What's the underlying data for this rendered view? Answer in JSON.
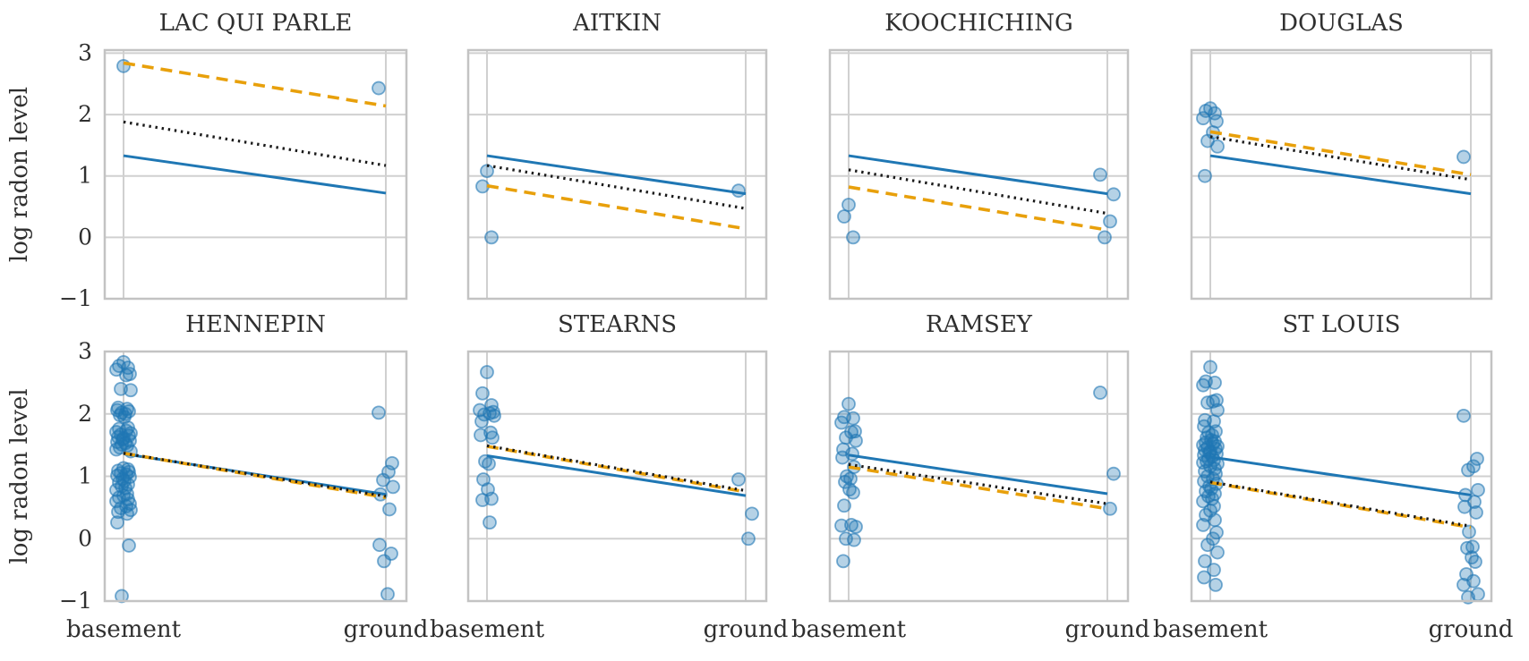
{
  "figure": {
    "ylabel": "log radon level",
    "ytick_labels": [
      "3",
      "2",
      "1",
      "0",
      "−1"
    ],
    "xtick_labels": [
      "basement",
      "ground"
    ],
    "colors": {
      "scatter_fill": "#1f77b4",
      "solid_line": "#1f77b4",
      "dotted_line": "#1a1a1a",
      "dashed_line": "#e8a00b",
      "grid": "#d0d0d0",
      "spine": "#c3c3c3",
      "text": "#2f2f2f",
      "background": "#ffffff"
    }
  },
  "chart_data": {
    "type": "scatter",
    "x_categories": [
      "basement",
      "ground"
    ],
    "x_values": [
      0,
      1
    ],
    "ylabel": "log radon level",
    "yticks": [
      3,
      2,
      1,
      0,
      -1
    ],
    "ylim": [
      -1,
      3.05
    ],
    "grid": true,
    "legend": false,
    "line_series_styles": {
      "solid": {
        "color": "#1f77b4",
        "style": "solid"
      },
      "dotted": {
        "color": "#1a1a1a",
        "style": "dotted"
      },
      "dashed": {
        "color": "#e8a00b",
        "style": "dashed"
      }
    },
    "subplots": [
      {
        "title": "LAC QUI PARLE",
        "row": 0,
        "col": 0,
        "points": {
          "basement": [
            2.79
          ],
          "ground": [
            2.43
          ]
        },
        "lines": {
          "solid": [
            1.33,
            0.72
          ],
          "dotted": [
            1.88,
            1.17
          ],
          "dashed": [
            2.84,
            2.14
          ]
        }
      },
      {
        "title": "AITKIN",
        "row": 0,
        "col": 1,
        "points": {
          "basement": [
            1.08,
            0.83,
            0.0
          ],
          "ground": [
            0.76
          ]
        },
        "lines": {
          "solid": [
            1.33,
            0.71
          ],
          "dotted": [
            1.17,
            0.47
          ],
          "dashed": [
            0.84,
            0.14
          ]
        }
      },
      {
        "title": "KOOCHICHING",
        "row": 0,
        "col": 2,
        "points": {
          "basement": [
            0.53,
            0.34,
            0.0
          ],
          "ground": [
            1.02,
            0.7,
            0.26,
            0.0
          ]
        },
        "lines": {
          "solid": [
            1.33,
            0.71
          ],
          "dotted": [
            1.1,
            0.39
          ],
          "dashed": [
            0.82,
            0.12
          ]
        }
      },
      {
        "title": "DOUGLAS",
        "row": 0,
        "col": 3,
        "points": {
          "basement": [
            2.1,
            2.06,
            2.02,
            1.94,
            1.89,
            1.71,
            1.57,
            1.48,
            1.0
          ],
          "ground": [
            1.31
          ]
        },
        "lines": {
          "solid": [
            1.33,
            0.71
          ],
          "dotted": [
            1.64,
            0.94
          ],
          "dashed": [
            1.72,
            1.02
          ]
        }
      },
      {
        "title": "HENNEPIN",
        "row": 1,
        "col": 0,
        "points": {
          "basement": [
            2.83,
            2.77,
            2.74,
            2.71,
            2.64,
            2.62,
            2.4,
            2.38,
            2.1,
            2.08,
            2.06,
            2.04,
            2.02,
            2.0,
            1.98,
            1.95,
            1.78,
            1.76,
            1.73,
            1.71,
            1.69,
            1.67,
            1.65,
            1.63,
            1.61,
            1.59,
            1.57,
            1.55,
            1.53,
            1.51,
            1.49,
            1.46,
            1.43,
            1.4,
            1.13,
            1.11,
            1.09,
            1.07,
            1.05,
            1.03,
            1.01,
            0.99,
            0.96,
            0.93,
            0.9,
            0.87,
            0.84,
            0.81,
            0.78,
            0.72,
            0.69,
            0.66,
            0.63,
            0.6,
            0.56,
            0.52,
            0.49,
            0.46,
            0.43,
            0.4,
            0.26,
            -0.11,
            -0.92
          ],
          "ground": [
            2.02,
            1.21,
            1.07,
            0.94,
            0.83,
            0.71,
            0.47,
            -0.1,
            -0.24,
            -0.36,
            -0.89
          ]
        },
        "lines": {
          "solid": [
            1.36,
            0.71
          ],
          "dotted": [
            1.37,
            0.68
          ],
          "dashed": [
            1.37,
            0.66
          ]
        }
      },
      {
        "title": "STEARNS",
        "row": 1,
        "col": 1,
        "points": {
          "basement": [
            2.67,
            2.33,
            2.14,
            2.06,
            2.03,
            2.01,
            1.99,
            1.97,
            1.88,
            1.7,
            1.66,
            1.62,
            1.24,
            1.2,
            0.95,
            0.79,
            0.64,
            0.62,
            0.26
          ],
          "ground": [
            0.95,
            0.4,
            0.0
          ]
        },
        "lines": {
          "solid": [
            1.33,
            0.69
          ],
          "dotted": [
            1.49,
            0.77
          ],
          "dashed": [
            1.48,
            0.75
          ]
        }
      },
      {
        "title": "RAMSEY",
        "row": 1,
        "col": 2,
        "points": {
          "basement": [
            2.16,
            1.95,
            1.93,
            1.86,
            1.72,
            1.71,
            1.62,
            1.57,
            1.43,
            1.36,
            1.3,
            1.15,
            1.0,
            0.96,
            0.91,
            0.79,
            0.74,
            0.53,
            0.22,
            0.21,
            0.19,
            0.0,
            -0.02,
            -0.36
          ],
          "ground": [
            2.34,
            1.04,
            0.48
          ]
        },
        "lines": {
          "solid": [
            1.34,
            0.72
          ],
          "dotted": [
            1.19,
            0.56
          ],
          "dashed": [
            1.15,
            0.48
          ]
        }
      },
      {
        "title": "ST LOUIS",
        "row": 1,
        "col": 3,
        "points": {
          "basement": [
            2.75,
            2.52,
            2.5,
            2.46,
            2.22,
            2.2,
            2.18,
            2.06,
            1.9,
            1.88,
            1.8,
            1.72,
            1.7,
            1.66,
            1.62,
            1.58,
            1.56,
            1.54,
            1.52,
            1.5,
            1.48,
            1.46,
            1.44,
            1.42,
            1.4,
            1.38,
            1.36,
            1.34,
            1.32,
            1.28,
            1.26,
            1.24,
            1.22,
            1.2,
            1.16,
            1.12,
            1.08,
            1.04,
            1.0,
            0.96,
            0.92,
            0.88,
            0.84,
            0.8,
            0.76,
            0.72,
            0.68,
            0.64,
            0.6,
            0.52,
            0.45,
            0.38,
            0.3,
            0.22,
            0.1,
            0.0,
            -0.1,
            -0.22,
            -0.36,
            -0.5,
            -0.62,
            -0.74
          ],
          "ground": [
            1.97,
            1.28,
            1.16,
            1.1,
            0.78,
            0.7,
            0.59,
            0.51,
            0.42,
            0.11,
            -0.13,
            -0.15,
            -0.3,
            -0.37,
            -0.57,
            -0.68,
            -0.74,
            -0.89,
            -0.94
          ]
        },
        "lines": {
          "solid": [
            1.31,
            0.7
          ],
          "dotted": [
            0.91,
            0.2
          ],
          "dashed": [
            0.9,
            0.18
          ]
        }
      }
    ]
  }
}
